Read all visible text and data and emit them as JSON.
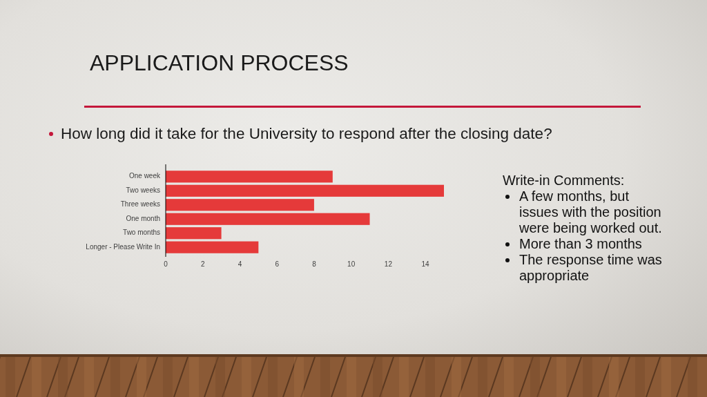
{
  "chart_data": {
    "type": "bar",
    "orientation": "horizontal",
    "title": "APPLICATION PROCESS",
    "subtitle": "How long did it take for the University to respond after the closing date?",
    "categories": [
      "One week",
      "Two weeks",
      "Three weeks",
      "One month",
      "Two months",
      "Longer - Please Write In"
    ],
    "values": [
      9,
      15,
      8,
      11,
      3,
      5
    ],
    "color": "#e53a3a",
    "xlim": [
      0,
      15
    ],
    "xticks": [
      0,
      2,
      4,
      6,
      8,
      10,
      12,
      14
    ],
    "annotations": [
      "Write-in Comments:",
      "A few months, but issues with the position were being worked out.",
      "More than 3 months",
      "The response time was appropriate"
    ]
  }
}
